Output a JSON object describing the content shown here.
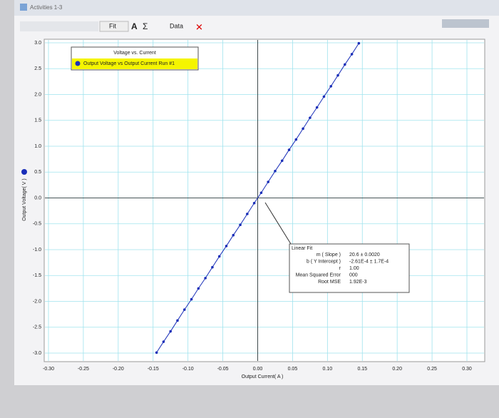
{
  "window_title": "Activities 1-3",
  "toolbar": [
    "Fit",
    "A",
    "Σ",
    "Data"
  ],
  "chart_data": {
    "type": "line",
    "title": "Voltage vs. Current",
    "x_label": "Output Current( A )",
    "y_label": "Output Voltage( V )",
    "x": [
      -0.145,
      -0.135,
      -0.125,
      -0.115,
      -0.105,
      -0.095,
      -0.085,
      -0.075,
      -0.065,
      -0.055,
      -0.045,
      -0.035,
      -0.025,
      -0.015,
      -0.005,
      0.005,
      0.015,
      0.025,
      0.035,
      0.045,
      0.055,
      0.065,
      0.075,
      0.085,
      0.095,
      0.105,
      0.115,
      0.125,
      0.135,
      0.145
    ],
    "series": [
      {
        "name": "Output Voltage vs Output Current Run #1",
        "color": "#1a2fb8",
        "values": [
          -2.99,
          -2.78,
          -2.58,
          -2.37,
          -2.16,
          -1.96,
          -1.75,
          -1.55,
          -1.34,
          -1.13,
          -0.93,
          -0.72,
          -0.52,
          -0.31,
          -0.1,
          0.1,
          0.31,
          0.52,
          0.72,
          0.93,
          1.13,
          1.34,
          1.55,
          1.75,
          1.96,
          2.16,
          2.37,
          2.58,
          2.78,
          2.99
        ]
      }
    ],
    "xlim": [
      -0.3,
      0.3
    ],
    "ylim": [
      -3,
      3
    ],
    "xticks": [
      {
        "value": -0.3,
        "label": "-0.30"
      },
      -0.25,
      {
        "value": -0.2,
        "label": "-0.20"
      },
      -0.15,
      {
        "value": -0.1,
        "label": "-0.10"
      },
      -0.05,
      {
        "value": 0,
        "label": "0.00"
      },
      0.05,
      {
        "value": 0.1,
        "label": "0.10"
      },
      0.15,
      {
        "value": 0.2,
        "label": "0.20"
      },
      0.25,
      {
        "value": 0.3,
        "label": "0.30"
      }
    ],
    "yticks": [
      {
        "value": -3,
        "label": "-3.0"
      },
      -2.5,
      {
        "value": -2,
        "label": "-2.0"
      },
      -1.5,
      {
        "value": -1,
        "label": "-1.0"
      },
      -0.5,
      {
        "value": 0,
        "label": "0.0"
      },
      0.5,
      {
        "value": 1,
        "label": "1.0"
      },
      1.5,
      {
        "value": 2,
        "label": "2.0"
      },
      2.5,
      {
        "value": 3,
        "label": "3.0"
      }
    ],
    "grid": true,
    "grid_color": "#9fe3ee",
    "legend": "top-left",
    "fit": {
      "title": "Linear Fit",
      "rows": [
        [
          "m ( Slope )",
          "20.6 ± 0.0020"
        ],
        [
          "b ( Y Intercept )",
          "-2.61E-4 ± 1.7E-4"
        ],
        [
          "r",
          "1.00"
        ],
        [
          "Mean Squared Error",
          "000"
        ],
        [
          "Root MSE",
          "1.92E-3"
        ]
      ]
    }
  }
}
